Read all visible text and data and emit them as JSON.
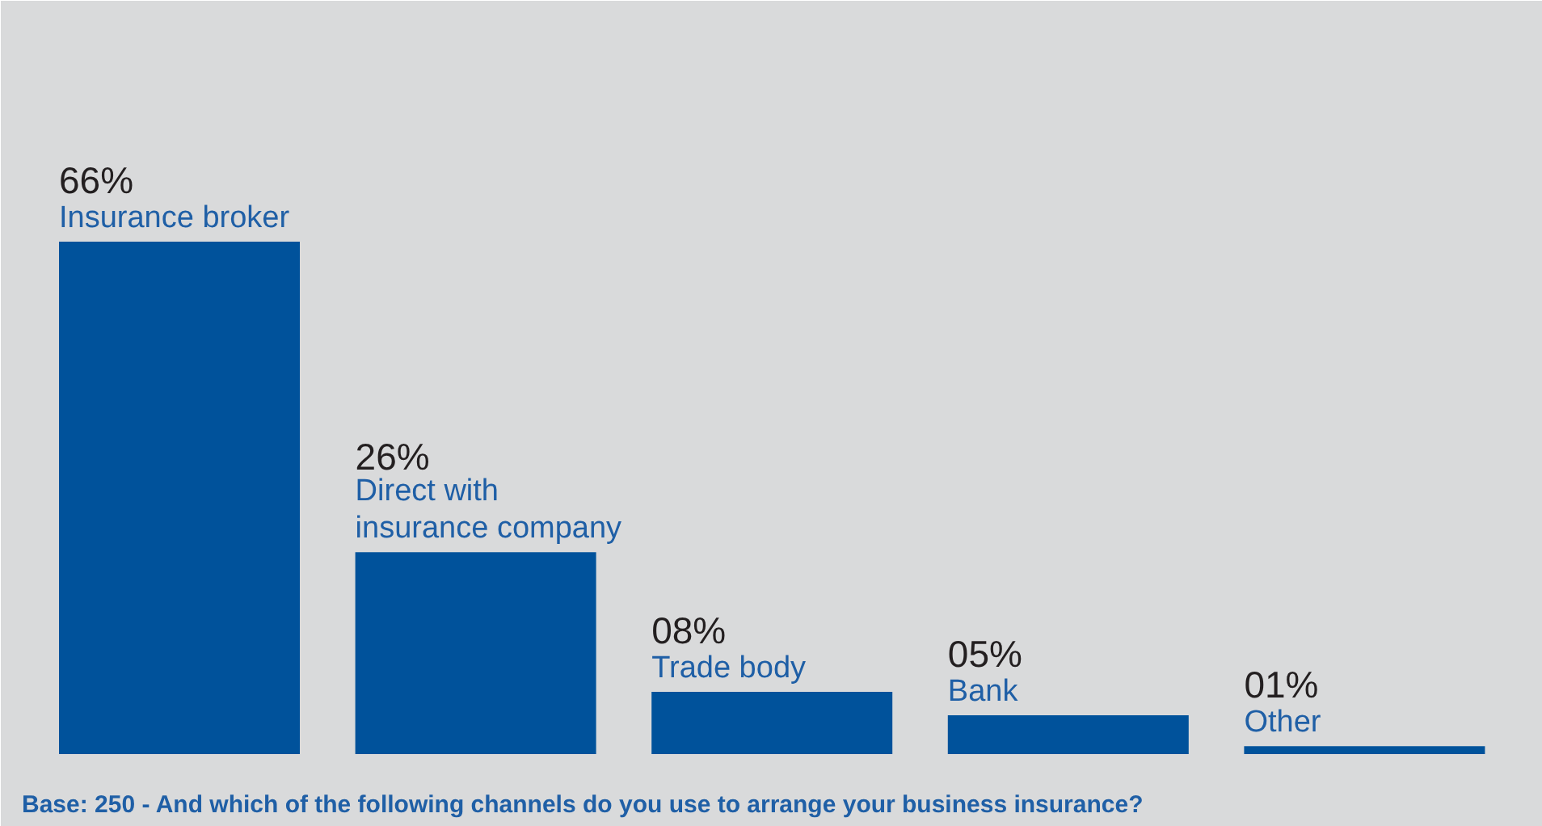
{
  "chart_data": {
    "type": "bar",
    "categories": [
      "Insurance broker",
      "Direct with\ninsurance company",
      "Trade body",
      "Bank",
      "Other"
    ],
    "values": [
      66,
      26,
      8,
      5,
      1
    ],
    "value_labels": [
      "66%",
      "26%",
      "08%",
      "05%",
      "01%"
    ],
    "color": "#00529b",
    "grid": false,
    "annotations": [
      "Base: 250 - And which of the following channels do you use to arrange your business insurance?"
    ]
  }
}
